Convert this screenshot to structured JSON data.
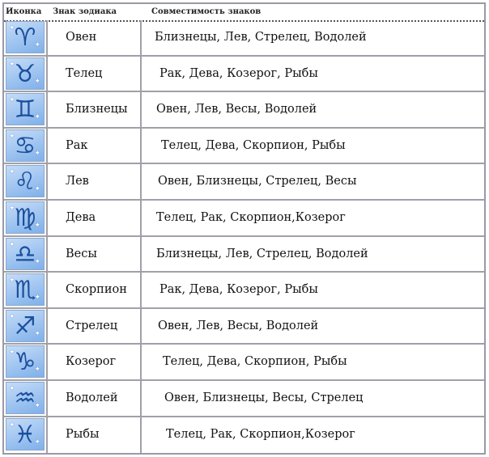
{
  "header": {
    "icon": "Иконка",
    "sign": "Знак зодиака",
    "compat": "Совместимость знаков"
  },
  "colors": {
    "icon_bg": "#7fb0ea",
    "icon_glyph": "#1b4f9c",
    "border": "#a0a0a8"
  },
  "rows": [
    {
      "icon": "aries-icon",
      "glyph": "♈",
      "sign": "Овен",
      "compat": "Близнецы, Лев, Стрелец, Водолей"
    },
    {
      "icon": "taurus-icon",
      "glyph": "♉",
      "sign": "Телец",
      "compat": "Рак, Дева, Козерог, Рыбы"
    },
    {
      "icon": "gemini-icon",
      "glyph": "♊",
      "sign": "Близнецы",
      "compat": "Овен, Лев, Весы, Водолей"
    },
    {
      "icon": "cancer-icon",
      "glyph": "♋",
      "sign": "Рак",
      "compat": "Телец, Дева, Скорпион, Рыбы"
    },
    {
      "icon": "leo-icon",
      "glyph": "♌",
      "sign": "Лев",
      "compat": "Овен, Близнецы, Стрелец, Весы"
    },
    {
      "icon": "virgo-icon",
      "glyph": "♍",
      "sign": "Дева",
      "compat": "Телец, Рак, Скорпион,Козерог"
    },
    {
      "icon": "libra-icon",
      "glyph": "♎",
      "sign": "Весы",
      "compat": "Близнецы, Лев, Стрелец, Водолей"
    },
    {
      "icon": "scorpio-icon",
      "glyph": "♏",
      "sign": "Скорпион",
      "compat": "Рак, Дева, Козерог, Рыбы"
    },
    {
      "icon": "sagittarius-icon",
      "glyph": "♐",
      "sign": "Стрелец",
      "compat": "Овен, Лев, Весы, Водолей"
    },
    {
      "icon": "capricorn-icon",
      "glyph": "♑",
      "sign": "Козерог",
      "compat": "Телец, Дева, Скорпион, Рыбы"
    },
    {
      "icon": "aquarius-icon",
      "glyph": "♒",
      "sign": "Водолей",
      "compat": "Овен, Близнецы, Весы, Стрелец"
    },
    {
      "icon": "pisces-icon",
      "glyph": "♓",
      "sign": "Рыбы",
      "compat": "Телец, Рак, Скорпион,Козерог"
    }
  ]
}
